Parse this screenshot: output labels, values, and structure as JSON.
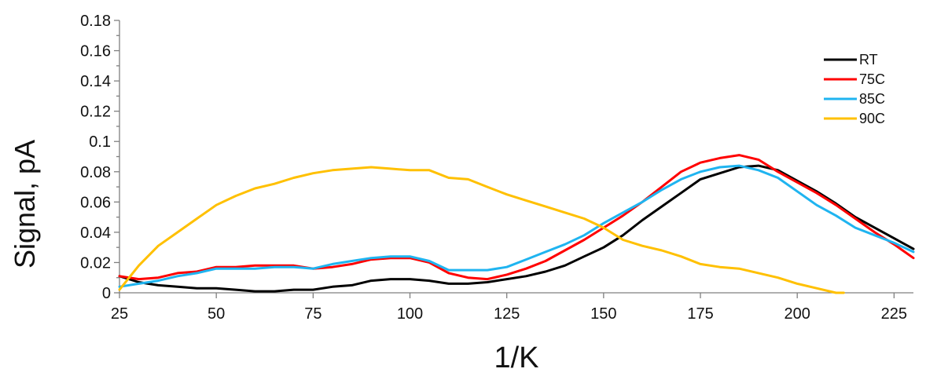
{
  "chart_data": {
    "type": "line",
    "title": "",
    "xlabel": "1/K",
    "ylabel": "Signal, pA",
    "xlim": [
      25,
      230
    ],
    "ylim": [
      0,
      0.18
    ],
    "x_ticks": [
      25,
      50,
      75,
      100,
      125,
      150,
      175,
      200,
      225
    ],
    "x_tick_labels": [
      "25",
      "50",
      "75",
      "100",
      "125",
      "150",
      "175",
      "200",
      "225"
    ],
    "y_ticks": [
      0,
      0.02,
      0.04,
      0.06,
      0.08,
      0.1,
      0.12,
      0.14,
      0.16,
      0.18
    ],
    "y_tick_labels": [
      "0",
      "0.02",
      "0.04",
      "0.06",
      "0.08",
      "0.1",
      "0.12",
      "0.14",
      "0.16",
      "0.18"
    ],
    "grid": false,
    "legend_position": "top-right",
    "series": [
      {
        "name": "RT",
        "color": "#000000",
        "x": [
          25,
          30,
          35,
          40,
          45,
          50,
          55,
          60,
          65,
          70,
          75,
          80,
          85,
          90,
          95,
          100,
          105,
          110,
          115,
          120,
          125,
          130,
          135,
          140,
          145,
          150,
          155,
          160,
          165,
          170,
          175,
          180,
          185,
          190,
          195,
          200,
          205,
          210,
          215,
          220,
          225,
          230
        ],
        "y": [
          0.011,
          0.007,
          0.005,
          0.004,
          0.003,
          0.003,
          0.002,
          0.001,
          0.001,
          0.002,
          0.002,
          0.004,
          0.005,
          0.008,
          0.009,
          0.009,
          0.008,
          0.006,
          0.006,
          0.007,
          0.009,
          0.011,
          0.014,
          0.018,
          0.024,
          0.03,
          0.038,
          0.048,
          0.057,
          0.066,
          0.075,
          0.079,
          0.083,
          0.084,
          0.081,
          0.074,
          0.067,
          0.059,
          0.05,
          0.043,
          0.036,
          0.029
        ]
      },
      {
        "name": "75C",
        "color": "#ff0000",
        "x": [
          25,
          30,
          35,
          40,
          45,
          50,
          55,
          60,
          65,
          70,
          75,
          80,
          85,
          90,
          95,
          100,
          105,
          110,
          115,
          120,
          125,
          130,
          135,
          140,
          145,
          150,
          155,
          160,
          165,
          170,
          175,
          180,
          185,
          190,
          195,
          200,
          205,
          210,
          215,
          220,
          225,
          230
        ],
        "y": [
          0.011,
          0.009,
          0.01,
          0.013,
          0.014,
          0.017,
          0.017,
          0.018,
          0.018,
          0.018,
          0.016,
          0.017,
          0.019,
          0.022,
          0.023,
          0.023,
          0.02,
          0.013,
          0.01,
          0.009,
          0.012,
          0.016,
          0.021,
          0.028,
          0.035,
          0.043,
          0.051,
          0.06,
          0.07,
          0.08,
          0.086,
          0.089,
          0.091,
          0.088,
          0.08,
          0.073,
          0.066,
          0.058,
          0.049,
          0.04,
          0.032,
          0.023
        ]
      },
      {
        "name": "85C",
        "color": "#1fb4f0",
        "x": [
          25,
          30,
          35,
          40,
          45,
          50,
          55,
          60,
          65,
          70,
          75,
          80,
          85,
          90,
          95,
          100,
          105,
          110,
          115,
          120,
          125,
          130,
          135,
          140,
          145,
          150,
          155,
          160,
          165,
          170,
          175,
          180,
          185,
          190,
          195,
          200,
          205,
          210,
          215,
          220,
          225,
          230
        ],
        "y": [
          0.004,
          0.006,
          0.008,
          0.011,
          0.013,
          0.016,
          0.016,
          0.016,
          0.017,
          0.017,
          0.016,
          0.019,
          0.021,
          0.023,
          0.024,
          0.024,
          0.021,
          0.015,
          0.015,
          0.015,
          0.017,
          0.022,
          0.027,
          0.032,
          0.038,
          0.046,
          0.053,
          0.06,
          0.068,
          0.075,
          0.08,
          0.083,
          0.084,
          0.081,
          0.076,
          0.067,
          0.058,
          0.051,
          0.043,
          0.038,
          0.033,
          0.027
        ]
      },
      {
        "name": "90C",
        "color": "#ffc000",
        "x": [
          25,
          30,
          35,
          40,
          45,
          50,
          55,
          60,
          65,
          70,
          75,
          80,
          85,
          90,
          95,
          100,
          105,
          110,
          115,
          120,
          125,
          130,
          135,
          140,
          145,
          150,
          155,
          160,
          165,
          170,
          175,
          180,
          185,
          190,
          195,
          200,
          205,
          210,
          212
        ],
        "y": [
          0.002,
          0.018,
          0.031,
          0.04,
          0.049,
          0.058,
          0.064,
          0.069,
          0.072,
          0.076,
          0.079,
          0.081,
          0.082,
          0.083,
          0.082,
          0.081,
          0.081,
          0.076,
          0.075,
          0.07,
          0.065,
          0.061,
          0.057,
          0.053,
          0.049,
          0.043,
          0.035,
          0.031,
          0.028,
          0.024,
          0.019,
          0.017,
          0.016,
          0.013,
          0.01,
          0.006,
          0.003,
          0.0,
          0.0
        ]
      }
    ]
  }
}
